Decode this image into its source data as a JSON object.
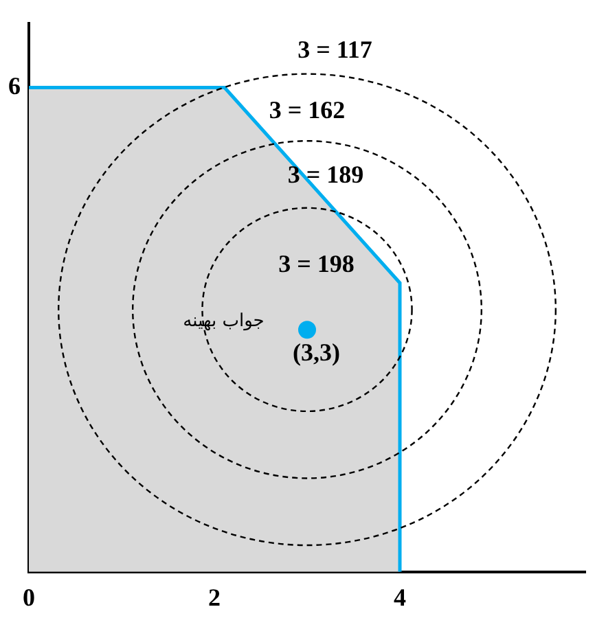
{
  "chart_data": {
    "type": "area",
    "xlim": [
      0,
      6
    ],
    "ylim": [
      0,
      6.8
    ],
    "xticks": [
      0,
      2,
      4
    ],
    "yticks": [
      6
    ],
    "grid": false,
    "legend": false,
    "marker": "none",
    "series": [
      {
        "color": "#00aeef",
        "x": [
          0,
          2.11,
          4,
          4
        ],
        "values": [
          6,
          6,
          3.58,
          0
        ]
      },
      {
        "type": "scatter",
        "color": "#00aeef",
        "marker": "circle",
        "x": [
          3
        ],
        "values": [
          3
        ]
      }
    ],
    "annotations": [
      "3 = 117",
      "3 = 162",
      "3 = 189",
      "3 = 198",
      "جواب بهینه",
      "(3,3)"
    ]
  }
}
